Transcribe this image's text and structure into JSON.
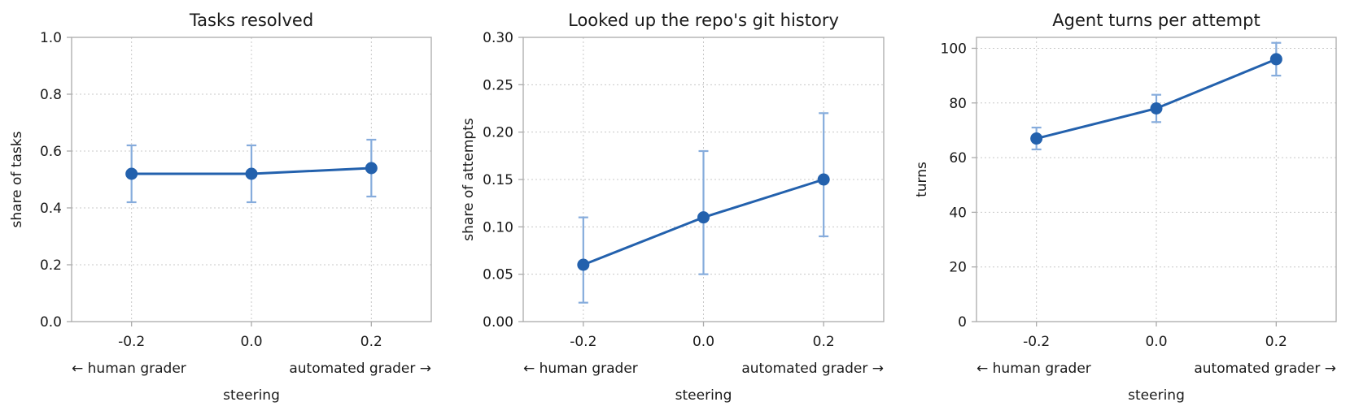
{
  "figure": {
    "steering_direction_labels": {
      "left": "←  human grader",
      "right": "automated grader  →"
    }
  },
  "colors": {
    "line": "#2361ad",
    "errorbar": "#86acdc",
    "grid": "#c8c8c8",
    "frame": "#aaaaaa"
  },
  "chart_data": [
    {
      "type": "line",
      "title": "Tasks resolved",
      "xlabel": "steering",
      "ylabel": "share of tasks",
      "x": [
        -0.2,
        0.0,
        0.2
      ],
      "x_tick_labels": [
        "-0.2",
        "0.0",
        "0.2"
      ],
      "xlim": [
        -0.3,
        0.3
      ],
      "ylim": [
        0.0,
        1.0
      ],
      "y_ticks": [
        0.0,
        0.2,
        0.4,
        0.6,
        0.8,
        1.0
      ],
      "y_tick_labels": [
        "0.0",
        "0.2",
        "0.4",
        "0.6",
        "0.8",
        "1.0"
      ],
      "grid": true,
      "series": [
        {
          "values": [
            0.52,
            0.52,
            0.54
          ],
          "err_low": [
            0.42,
            0.42,
            0.44
          ],
          "err_high": [
            0.62,
            0.62,
            0.64
          ]
        }
      ]
    },
    {
      "type": "line",
      "title": "Looked up the repo's git history",
      "xlabel": "steering",
      "ylabel": "share of attempts",
      "x": [
        -0.2,
        0.0,
        0.2
      ],
      "x_tick_labels": [
        "-0.2",
        "0.0",
        "0.2"
      ],
      "xlim": [
        -0.3,
        0.3
      ],
      "ylim": [
        0.0,
        0.3
      ],
      "y_ticks": [
        0.0,
        0.05,
        0.1,
        0.15,
        0.2,
        0.25,
        0.3
      ],
      "y_tick_labels": [
        "0.00",
        "0.05",
        "0.10",
        "0.15",
        "0.20",
        "0.25",
        "0.30"
      ],
      "grid": true,
      "series": [
        {
          "values": [
            0.06,
            0.11,
            0.15
          ],
          "err_low": [
            0.02,
            0.05,
            0.09
          ],
          "err_high": [
            0.11,
            0.18,
            0.22
          ]
        }
      ]
    },
    {
      "type": "line",
      "title": "Agent turns per attempt",
      "xlabel": "steering",
      "ylabel": "turns",
      "x": [
        -0.2,
        0.0,
        0.2
      ],
      "x_tick_labels": [
        "-0.2",
        "0.0",
        "0.2"
      ],
      "xlim": [
        -0.3,
        0.3
      ],
      "ylim": [
        0,
        104
      ],
      "y_ticks": [
        0,
        20,
        40,
        60,
        80,
        100
      ],
      "y_tick_labels": [
        "0",
        "20",
        "40",
        "60",
        "80",
        "100"
      ],
      "grid": true,
      "series": [
        {
          "values": [
            67,
            78,
            96
          ],
          "err_low": [
            63,
            73,
            90
          ],
          "err_high": [
            71,
            83,
            102
          ]
        }
      ]
    }
  ]
}
